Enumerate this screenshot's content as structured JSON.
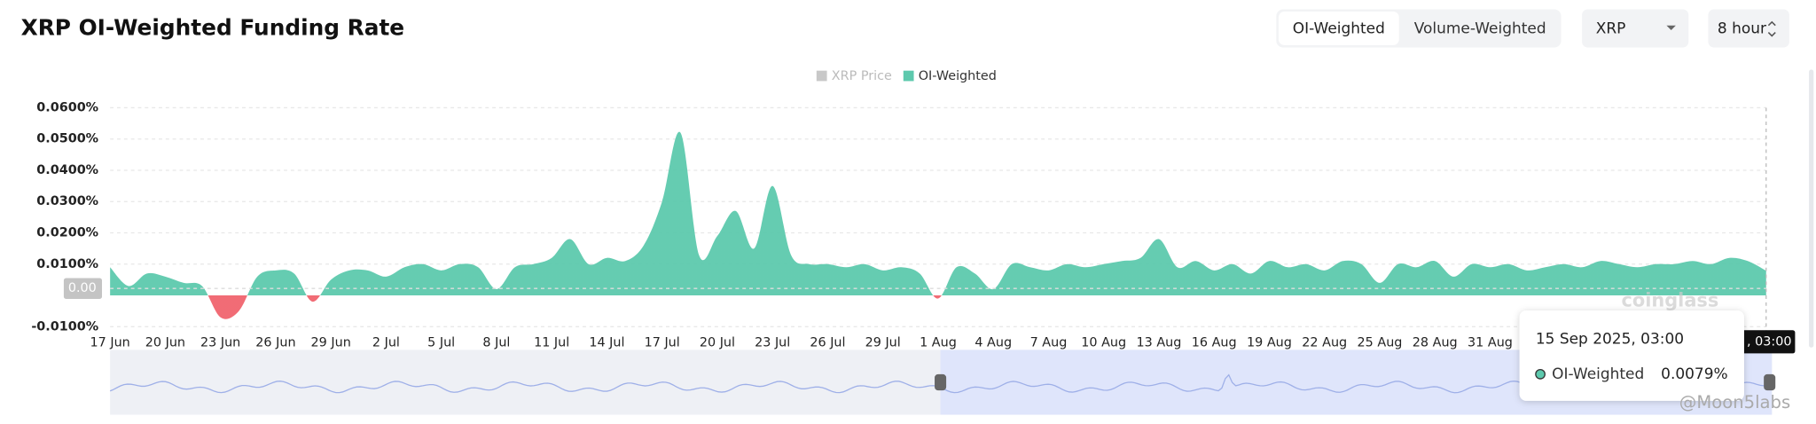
{
  "chart_data": {
    "type": "area",
    "title": "XRP OI-Weighted Funding Rate",
    "controls": {
      "modes": [
        "OI-Weighted",
        "Volume-Weighted"
      ],
      "symbol": "XRP",
      "interval": "8 hour"
    },
    "legend": [
      {
        "name": "XRP Price",
        "color": "#c8c8c8",
        "disabled": true
      },
      {
        "name": "OI-Weighted",
        "color": "#5dc9ad"
      }
    ],
    "categories": [
      "17 Jun",
      null,
      null,
      "20 Jun",
      null,
      null,
      "23 Jun",
      null,
      null,
      "26 Jun",
      null,
      null,
      "29 Jun",
      null,
      null,
      "2 Jul",
      null,
      null,
      "5 Jul",
      null,
      null,
      "8 Jul",
      null,
      null,
      "11 Jul",
      null,
      null,
      "14 Jul",
      null,
      null,
      "17 Jul",
      null,
      null,
      "20 Jul",
      null,
      null,
      "23 Jul",
      null,
      null,
      "26 Jul",
      null,
      null,
      "29 Jul",
      null,
      null,
      "1 Aug",
      null,
      null,
      "4 Aug",
      null,
      null,
      "7 Aug",
      null,
      null,
      "10 Aug",
      null,
      null,
      "13 Aug",
      null,
      null,
      "16 Aug",
      null,
      null,
      "19 Aug",
      null,
      null,
      "22 Aug",
      null,
      null,
      "25 Aug",
      null,
      null,
      "28 Aug",
      null,
      null,
      "31 Aug",
      null,
      null,
      null,
      null,
      null,
      null,
      null,
      null,
      null,
      null,
      null,
      null,
      null,
      null,
      null
    ],
    "series": [
      {
        "name": "OI-Weighted",
        "color": "#5dc9ad",
        "negative_color": "#f0646e",
        "values": [
          0.009,
          0.003,
          0.007,
          0.006,
          0.004,
          0.003,
          -0.007,
          -0.005,
          0.006,
          0.008,
          0.007,
          -0.002,
          0.005,
          0.008,
          0.008,
          0.006,
          0.009,
          0.01,
          0.008,
          0.01,
          0.009,
          0.002,
          0.009,
          0.01,
          0.012,
          0.018,
          0.01,
          0.012,
          0.011,
          0.016,
          0.03,
          0.052,
          0.013,
          0.019,
          0.027,
          0.015,
          0.035,
          0.013,
          0.01,
          0.01,
          0.009,
          0.01,
          0.008,
          0.009,
          0.007,
          -0.001,
          0.009,
          0.007,
          0.002,
          0.01,
          0.009,
          0.008,
          0.01,
          0.009,
          0.01,
          0.011,
          0.012,
          0.018,
          0.009,
          0.011,
          0.008,
          0.01,
          0.007,
          0.011,
          0.009,
          0.01,
          0.008,
          0.011,
          0.01,
          0.004,
          0.01,
          0.009,
          0.011,
          0.006,
          0.01,
          0.009,
          0.01,
          0.008,
          0.009,
          0.01,
          0.009,
          0.011,
          0.01,
          0.009,
          0.01,
          0.01,
          0.011,
          0.01,
          0.012,
          0.011,
          0.0079
        ]
      }
    ],
    "ylim": [
      -0.01,
      0.06
    ],
    "yticks": [
      {
        "value": -0.01,
        "label": "-0.0100%"
      },
      {
        "value": 0.01,
        "label": "0.0100%"
      },
      {
        "value": 0.02,
        "label": "0.0200%"
      },
      {
        "value": 0.03,
        "label": "0.0300%"
      },
      {
        "value": 0.04,
        "label": "0.0400%"
      },
      {
        "value": 0.05,
        "label": "0.0500%"
      },
      {
        "value": 0.06,
        "label": "0.0600%"
      }
    ],
    "grid": true,
    "crosshair": {
      "y_label": "0.00",
      "x_label": ", 03:00"
    },
    "tooltip": {
      "title": "15 Sep 2025, 03:00",
      "series": "OI-Weighted",
      "value_label": "0.0079%"
    },
    "watermark": "coinglass",
    "credit": "@Moon5labs"
  }
}
